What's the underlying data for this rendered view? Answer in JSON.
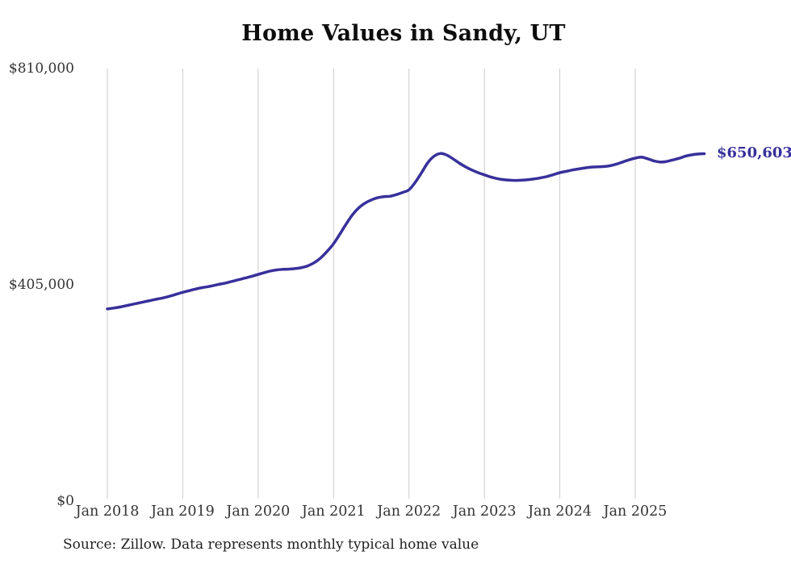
{
  "chart_data": {
    "type": "line",
    "title": "Home Values in Sandy, UT",
    "source_note": "Source: Zillow. Data represents monthly typical home value",
    "end_label": "$650,603",
    "latest_value": 650603,
    "line_color": "#37309b",
    "grid_color": "#cccccc",
    "background": "#ffffff",
    "legend": "none",
    "grid": "vertical-only",
    "ylim": [
      0,
      810000
    ],
    "y_tick_labels": [
      "$810,000",
      "$405,000",
      "$0"
    ],
    "y_tick_values": [
      810000,
      405000,
      0
    ],
    "x_tick_labels": [
      "Jan 2018",
      "Jan 2019",
      "Jan 2020",
      "Jan 2021",
      "Jan 2022",
      "Jan 2023",
      "Jan 2024",
      "Jan 2025"
    ],
    "x_tick_month_index": [
      0,
      12,
      24,
      36,
      48,
      60,
      72,
      84
    ],
    "x": [
      "2018-01",
      "2018-02",
      "2018-03",
      "2018-04",
      "2018-05",
      "2018-06",
      "2018-07",
      "2018-08",
      "2018-09",
      "2018-10",
      "2018-11",
      "2018-12",
      "2019-01",
      "2019-02",
      "2019-03",
      "2019-04",
      "2019-05",
      "2019-06",
      "2019-07",
      "2019-08",
      "2019-09",
      "2019-10",
      "2019-11",
      "2019-12",
      "2020-01",
      "2020-02",
      "2020-03",
      "2020-04",
      "2020-05",
      "2020-06",
      "2020-07",
      "2020-08",
      "2020-09",
      "2020-10",
      "2020-11",
      "2020-12",
      "2021-01",
      "2021-02",
      "2021-03",
      "2021-04",
      "2021-05",
      "2021-06",
      "2021-07",
      "2021-08",
      "2021-09",
      "2021-10",
      "2021-11",
      "2021-12",
      "2022-01",
      "2022-02",
      "2022-03",
      "2022-04",
      "2022-05",
      "2022-06",
      "2022-07",
      "2022-08",
      "2022-09",
      "2022-10",
      "2022-11",
      "2022-12",
      "2023-01",
      "2023-02",
      "2023-03",
      "2023-04",
      "2023-05",
      "2023-06",
      "2023-07",
      "2023-08",
      "2023-09",
      "2023-10",
      "2023-11",
      "2023-12",
      "2024-01",
      "2024-02",
      "2024-03",
      "2024-04",
      "2024-05",
      "2024-06",
      "2024-07",
      "2024-08",
      "2024-09",
      "2024-10",
      "2024-11",
      "2024-12",
      "2025-01",
      "2025-02",
      "2025-03",
      "2025-04",
      "2025-05",
      "2025-06",
      "2025-07",
      "2025-08",
      "2025-09",
      "2025-10",
      "2025-11",
      "2025-12"
    ],
    "values": [
      360000,
      361500,
      363500,
      366000,
      368500,
      371000,
      373500,
      376000,
      378500,
      381000,
      384000,
      387500,
      391000,
      394000,
      397000,
      399500,
      401500,
      404000,
      406500,
      409000,
      412000,
      415000,
      418000,
      421000,
      424500,
      428000,
      431000,
      433000,
      434000,
      434500,
      435500,
      437500,
      441000,
      447000,
      456000,
      468000,
      482000,
      500000,
      519000,
      536000,
      549000,
      558000,
      564000,
      568000,
      570000,
      571000,
      574000,
      578000,
      583000,
      597000,
      615000,
      634000,
      646000,
      651000,
      648000,
      641000,
      633000,
      626000,
      620000,
      615000,
      611000,
      607000,
      604000,
      602000,
      601000,
      600500,
      601000,
      602000,
      603500,
      605500,
      608000,
      611500,
      615000,
      617500,
      620000,
      622000,
      624000,
      625500,
      626000,
      626500,
      628000,
      631000,
      635000,
      639000,
      642300,
      644000,
      641000,
      637000,
      635000,
      636000,
      639000,
      642000,
      646000,
      648500,
      650000,
      650603
    ]
  }
}
